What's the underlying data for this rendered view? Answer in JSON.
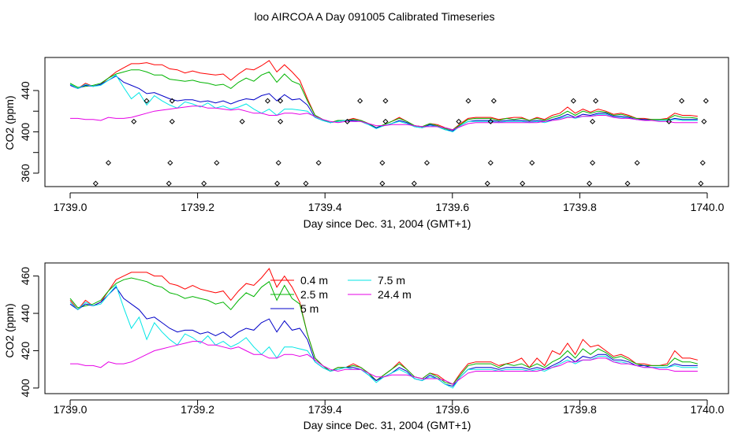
{
  "title": "loo AIRCOA A  Day 091005  Calibrated Timeseries",
  "colors": {
    "0.4 m": "#ff0000",
    "2.5 m": "#00b400",
    "5 m": "#0000c8",
    "7.5 m": "#00e6e6",
    "24.4 m": "#e600e6",
    "markers": "#000000"
  },
  "chart_data": [
    {
      "type": "scatter",
      "title": "",
      "xlabel": "Day since Dec. 31, 2004 (GMT+1)",
      "ylabel": "CO2 (ppm)",
      "xlim": [
        1739.0,
        1740.0
      ],
      "ylim": [
        347,
        472
      ],
      "xticks": [
        "1739.0",
        "1739.2",
        "1739.4",
        "1739.6",
        "1739.8",
        "1740.0"
      ],
      "yticks": [
        "360",
        "400",
        "440"
      ],
      "markers": {
        "x": [
          1739.04,
          1739.06,
          1739.1,
          1739.12,
          1739.155,
          1739.157,
          1739.16,
          1739.16,
          1739.21,
          1739.23,
          1739.27,
          1739.31,
          1739.325,
          1739.327,
          1739.33,
          1739.33,
          1739.37,
          1739.39,
          1739.435,
          1739.455,
          1739.49,
          1739.49,
          1739.495,
          1739.495,
          1739.54,
          1739.56,
          1739.61,
          1739.625,
          1739.655,
          1739.66,
          1739.66,
          1739.665,
          1739.71,
          1739.725,
          1739.79,
          1739.815,
          1739.82,
          1739.82,
          1739.825,
          1739.875,
          1739.89,
          1739.94,
          1739.96,
          1739.99,
          1739.993,
          1739.995,
          1739.998
        ],
        "y": [
          350,
          370,
          410,
          430,
          350,
          370,
          410,
          430,
          350,
          370,
          410,
          430,
          350,
          370,
          410,
          430,
          350,
          370,
          410,
          430,
          350,
          370,
          410,
          430,
          350,
          370,
          410,
          430,
          350,
          370,
          410,
          430,
          350,
          370,
          430,
          350,
          370,
          410,
          430,
          350,
          370,
          410,
          430,
          350,
          370,
          410,
          430
        ]
      },
      "series": [
        {
          "name": "0.4 m",
          "values": [
            446,
            442,
            447,
            444,
            446,
            452,
            458,
            462,
            466,
            466,
            467,
            465,
            465,
            461,
            460,
            457,
            459,
            457,
            456,
            455,
            456,
            450,
            456,
            461,
            460,
            464,
            469,
            458,
            465,
            458,
            450,
            432,
            416,
            412,
            409,
            411,
            411,
            413,
            411,
            408,
            404,
            407,
            410,
            414,
            410,
            406,
            405,
            408,
            407,
            404,
            402,
            408,
            413,
            414,
            414,
            414,
            412,
            413,
            414,
            414,
            411,
            414,
            412,
            416,
            418,
            424,
            418,
            422,
            419,
            422,
            420,
            417,
            418,
            416,
            413,
            413,
            412,
            412,
            413,
            418,
            416,
            416,
            415
          ]
        },
        {
          "name": "2.5 m",
          "values": [
            447,
            443,
            444,
            445,
            447,
            452,
            456,
            458,
            460,
            460,
            458,
            455,
            455,
            451,
            450,
            449,
            450,
            448,
            447,
            445,
            446,
            442,
            448,
            452,
            449,
            455,
            458,
            448,
            456,
            449,
            446,
            430,
            416,
            412,
            409,
            411,
            411,
            412,
            411,
            408,
            404,
            407,
            410,
            413,
            410,
            406,
            405,
            408,
            406,
            403,
            402,
            407,
            412,
            413,
            413,
            413,
            411,
            413,
            412,
            413,
            411,
            413,
            411,
            414,
            416,
            420,
            416,
            420,
            418,
            420,
            419,
            416,
            417,
            415,
            413,
            412,
            412,
            412,
            412,
            416,
            414,
            414,
            413
          ]
        },
        {
          "name": "5 m",
          "values": [
            445,
            442,
            445,
            444,
            446,
            450,
            454,
            448,
            445,
            442,
            437,
            438,
            435,
            432,
            430,
            431,
            431,
            429,
            430,
            428,
            430,
            427,
            430,
            432,
            431,
            435,
            437,
            430,
            436,
            431,
            432,
            426,
            414,
            411,
            409,
            410,
            411,
            411,
            410,
            407,
            404,
            406,
            408,
            411,
            409,
            405,
            404,
            407,
            405,
            402,
            401,
            406,
            410,
            411,
            411,
            411,
            410,
            411,
            411,
            411,
            410,
            411,
            410,
            412,
            414,
            417,
            414,
            417,
            416,
            418,
            418,
            415,
            415,
            414,
            412,
            412,
            411,
            411,
            411,
            413,
            412,
            412,
            412
          ]
        },
        {
          "name": "7.5 m",
          "values": [
            446,
            442,
            446,
            444,
            445,
            450,
            455,
            443,
            432,
            438,
            426,
            435,
            430,
            426,
            423,
            429,
            427,
            424,
            428,
            423,
            425,
            422,
            424,
            427,
            422,
            418,
            422,
            416,
            422,
            422,
            421,
            420,
            414,
            411,
            409,
            410,
            411,
            410,
            410,
            407,
            403,
            406,
            408,
            410,
            408,
            405,
            404,
            406,
            405,
            402,
            400,
            406,
            410,
            410,
            410,
            410,
            409,
            410,
            410,
            410,
            409,
            410,
            409,
            411,
            413,
            415,
            413,
            415,
            415,
            417,
            417,
            414,
            414,
            413,
            412,
            411,
            411,
            411,
            411,
            412,
            411,
            411,
            411
          ]
        },
        {
          "name": "24.4 m",
          "values": [
            413,
            413,
            412,
            412,
            411,
            414,
            413,
            413,
            414,
            416,
            418,
            420,
            421,
            422,
            423,
            424,
            425,
            425,
            423,
            423,
            422,
            421,
            422,
            420,
            418,
            418,
            416,
            416,
            418,
            418,
            417,
            418,
            415,
            412,
            410,
            409,
            410,
            410,
            410,
            408,
            406,
            406,
            407,
            407,
            407,
            406,
            405,
            405,
            405,
            404,
            402,
            405,
            408,
            409,
            409,
            409,
            409,
            409,
            409,
            409,
            409,
            409,
            410,
            411,
            412,
            414,
            414,
            415,
            415,
            416,
            416,
            414,
            413,
            413,
            412,
            411,
            411,
            410,
            410,
            409,
            409,
            409,
            409
          ]
        }
      ]
    },
    {
      "type": "line",
      "title": "",
      "xlabel": "Day since Dec. 31, 2004 (GMT+1)",
      "ylabel": "CO2 (ppm)",
      "xlim": [
        1739.0,
        1740.0
      ],
      "ylim": [
        397,
        467
      ],
      "xticks": [
        "1739.0",
        "1739.2",
        "1739.4",
        "1739.6",
        "1739.8",
        "1740.0"
      ],
      "yticks": [
        "400",
        "420",
        "440",
        "460"
      ],
      "legend": [
        "0.4 m",
        "2.5 m",
        "5 m",
        "7.5 m",
        "24.4 m"
      ],
      "legend_placement": "top-center",
      "series": [
        {
          "name": "0.4 m",
          "values": [
            447,
            442,
            447,
            444,
            446,
            452,
            458,
            460,
            462,
            462,
            462,
            460,
            460,
            456,
            455,
            453,
            455,
            453,
            452,
            451,
            452,
            447,
            452,
            456,
            455,
            459,
            464,
            454,
            460,
            454,
            446,
            429,
            416,
            412,
            409,
            411,
            411,
            413,
            411,
            408,
            404,
            407,
            410,
            414,
            410,
            406,
            405,
            408,
            407,
            404,
            402,
            408,
            413,
            414,
            414,
            414,
            412,
            413,
            414,
            416,
            411,
            416,
            412,
            420,
            418,
            424,
            418,
            426,
            422,
            423,
            420,
            417,
            418,
            416,
            413,
            413,
            412,
            412,
            413,
            420,
            416,
            416,
            415
          ]
        },
        {
          "name": "2.5 m",
          "values": [
            448,
            443,
            444,
            445,
            447,
            452,
            456,
            458,
            459,
            458,
            457,
            455,
            454,
            451,
            450,
            448,
            449,
            448,
            447,
            445,
            446,
            442,
            447,
            451,
            449,
            454,
            457,
            447,
            455,
            448,
            445,
            429,
            416,
            412,
            409,
            411,
            411,
            412,
            411,
            408,
            404,
            407,
            410,
            413,
            410,
            406,
            405,
            408,
            406,
            403,
            402,
            407,
            412,
            413,
            413,
            413,
            411,
            413,
            412,
            413,
            411,
            413,
            411,
            414,
            416,
            420,
            416,
            421,
            418,
            421,
            419,
            416,
            417,
            415,
            413,
            412,
            412,
            412,
            412,
            416,
            414,
            414,
            413
          ]
        },
        {
          "name": "5 m",
          "values": [
            445,
            442,
            445,
            444,
            446,
            450,
            454,
            448,
            445,
            442,
            437,
            438,
            435,
            432,
            430,
            431,
            431,
            429,
            430,
            428,
            430,
            427,
            430,
            432,
            431,
            435,
            437,
            430,
            436,
            431,
            432,
            426,
            414,
            411,
            409,
            410,
            411,
            411,
            410,
            407,
            404,
            406,
            408,
            411,
            409,
            405,
            404,
            407,
            405,
            402,
            401,
            406,
            410,
            411,
            411,
            411,
            410,
            411,
            411,
            411,
            410,
            411,
            410,
            412,
            414,
            417,
            414,
            417,
            416,
            418,
            418,
            415,
            415,
            414,
            412,
            412,
            411,
            411,
            411,
            413,
            412,
            412,
            412
          ]
        },
        {
          "name": "7.5 m",
          "values": [
            446,
            442,
            446,
            444,
            445,
            450,
            455,
            443,
            432,
            438,
            426,
            435,
            430,
            426,
            423,
            429,
            427,
            424,
            428,
            423,
            425,
            422,
            424,
            427,
            422,
            418,
            422,
            416,
            422,
            422,
            421,
            420,
            414,
            411,
            409,
            410,
            411,
            410,
            410,
            407,
            403,
            406,
            408,
            410,
            408,
            405,
            404,
            406,
            405,
            402,
            400,
            406,
            410,
            410,
            410,
            410,
            409,
            410,
            410,
            410,
            409,
            410,
            409,
            411,
            413,
            415,
            413,
            415,
            415,
            417,
            417,
            414,
            414,
            413,
            412,
            411,
            411,
            411,
            411,
            412,
            411,
            411,
            411
          ]
        },
        {
          "name": "24.4 m",
          "values": [
            413,
            413,
            412,
            412,
            411,
            414,
            413,
            413,
            414,
            416,
            418,
            420,
            421,
            422,
            423,
            424,
            425,
            425,
            423,
            423,
            422,
            421,
            422,
            420,
            418,
            418,
            416,
            416,
            418,
            418,
            417,
            418,
            415,
            412,
            410,
            409,
            410,
            410,
            410,
            408,
            406,
            406,
            407,
            407,
            407,
            406,
            405,
            405,
            405,
            404,
            402,
            405,
            408,
            409,
            409,
            409,
            409,
            409,
            409,
            409,
            409,
            409,
            410,
            411,
            412,
            414,
            414,
            415,
            415,
            416,
            416,
            414,
            413,
            413,
            412,
            411,
            411,
            410,
            410,
            409,
            409,
            409,
            409
          ]
        }
      ]
    }
  ]
}
